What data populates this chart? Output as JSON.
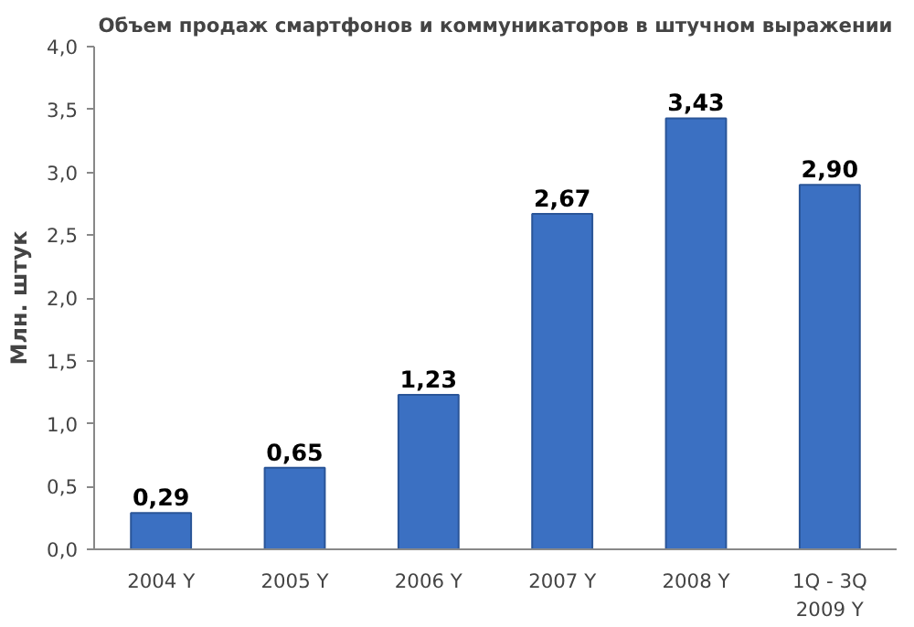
{
  "chart_data": {
    "type": "bar",
    "title": "Объем продаж смартфонов и коммуникаторов в штучном выражении",
    "ylabel": "Млн. штук",
    "categories": [
      "2004 Y",
      "2005 Y",
      "2006 Y",
      "2007 Y",
      "2008 Y",
      "1Q - 3Q\n2009 Y"
    ],
    "values": [
      0.29,
      0.65,
      1.23,
      2.67,
      3.43,
      2.9
    ],
    "value_labels": [
      "0,29",
      "0,65",
      "1,23",
      "2,67",
      "3,43",
      "2,90"
    ],
    "color": "#3b70c2",
    "ylim": [
      0,
      4
    ],
    "yticks": [
      {
        "value": 0,
        "label": "0,0"
      },
      {
        "value": 0.5,
        "label": "0,5"
      },
      {
        "value": 1,
        "label": "1,0"
      },
      {
        "value": 1.5,
        "label": "1,5"
      },
      {
        "value": 2,
        "label": "2,0"
      },
      {
        "value": 2.5,
        "label": "2,5"
      },
      {
        "value": 3,
        "label": "3,0"
      },
      {
        "value": 3.5,
        "label": "3,5"
      },
      {
        "value": 4,
        "label": "4,0"
      }
    ],
    "grid": false
  }
}
